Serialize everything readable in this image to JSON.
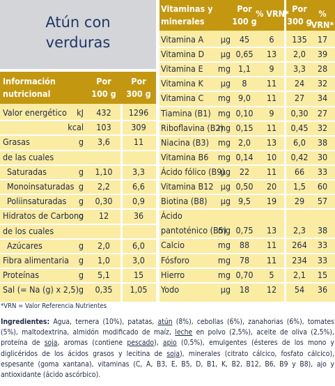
{
  "title": {
    "line1": "Atún con",
    "line2": "verduras"
  },
  "left": {
    "header": {
      "label_l1": "Información",
      "label_l2": "nutricional",
      "c1_l1": "Por",
      "c1_l2": "100 g",
      "c2_l1": "Por",
      "c2_l2": "300 g"
    },
    "rows": [
      {
        "label": "Valor energético",
        "unit": "kJ",
        "v1": "432",
        "v2": "1296"
      },
      {
        "label": "",
        "unit": "kcal",
        "v1": "103",
        "v2": "309"
      },
      {
        "label": "Grasas",
        "unit": "g",
        "v1": "3,6",
        "v2": "11"
      },
      {
        "label": "de las cuales",
        "unit": "",
        "v1": "",
        "v2": ""
      },
      {
        "label": "Saturadas",
        "unit": "g",
        "v1": "1,10",
        "v2": "3,3"
      },
      {
        "label": "Monoinsaturadas",
        "unit": "g",
        "v1": "2,2",
        "v2": "6,6"
      },
      {
        "label": "Poliinsaturadas",
        "unit": "g",
        "v1": "0,30",
        "v2": "0,9"
      },
      {
        "label": "Hidratos de Carbono",
        "unit": "g",
        "v1": "12",
        "v2": "36"
      },
      {
        "label": "de los cuales",
        "unit": "",
        "v1": "",
        "v2": ""
      },
      {
        "label": "Azúcares",
        "unit": "g",
        "v1": "2,0",
        "v2": "6,0"
      },
      {
        "label": "Fibra alimentaria",
        "unit": "g",
        "v1": "1,0",
        "v2": "3,0"
      },
      {
        "label": "Proteínas",
        "unit": "g",
        "v1": "5,1",
        "v2": "15"
      },
      {
        "label": "Sal (= Na (g) x 2,5)",
        "unit": "g",
        "v1": "0,35",
        "v2": "1,05"
      }
    ]
  },
  "right": {
    "header": {
      "label_l1": "Vitaminas y",
      "label_l2": "minerales",
      "c1_l1": "Por",
      "c1_l2": "100 g",
      "c2": "% VRN*",
      "c3_l1": "Por",
      "c3_l2": "300 g",
      "c4": "% VRN*"
    },
    "rows": [
      {
        "label": "Vitamina A",
        "unit": "µg",
        "v1": "45",
        "v2": "6",
        "v3": "135",
        "v4": "17"
      },
      {
        "label": "Vitamina D",
        "unit": "µg",
        "v1": "0,65",
        "v2": "13",
        "v3": "2,0",
        "v4": "39"
      },
      {
        "label": "Vitamina E",
        "unit": "mg",
        "v1": "1,1",
        "v2": "9",
        "v3": "3,3",
        "v4": "28"
      },
      {
        "label": "Vitamina K",
        "unit": "µg",
        "v1": "8",
        "v2": "11",
        "v3": "24",
        "v4": "32"
      },
      {
        "label": "Vitamina C",
        "unit": "mg",
        "v1": "9,0",
        "v2": "11",
        "v3": "27",
        "v4": "34"
      },
      {
        "label": "Tiamina (B1)",
        "unit": "mg",
        "v1": "0,10",
        "v2": "9",
        "v3": "0,30",
        "v4": "27"
      },
      {
        "label": "Riboflavina (B2)",
        "unit": "mg",
        "v1": "0,15",
        "v2": "11",
        "v3": "0,45",
        "v4": "32"
      },
      {
        "label": "Niacina (B3)",
        "unit": "mg",
        "v1": "2,0",
        "v2": "13",
        "v3": "6,0",
        "v4": "38"
      },
      {
        "label": "Vitamina B6",
        "unit": "mg",
        "v1": "0,14",
        "v2": "10",
        "v3": "0,42",
        "v4": "30"
      },
      {
        "label": "Ácido fólico (B9)",
        "unit": "µg",
        "v1": "22",
        "v2": "11",
        "v3": "66",
        "v4": "33"
      },
      {
        "label": "Vitamina B12",
        "unit": "µg",
        "v1": "0,50",
        "v2": "20",
        "v3": "1,5",
        "v4": "60"
      },
      {
        "label": "Biotina (B8)",
        "unit": "µg",
        "v1": "9,5",
        "v2": "19",
        "v3": "29",
        "v4": "57"
      },
      {
        "label": "Ácido",
        "unit": "",
        "v1": "",
        "v2": "",
        "v3": "",
        "v4": ""
      },
      {
        "label": "pantoténico (B5)",
        "unit": "mg",
        "v1": "0,75",
        "v2": "13",
        "v3": "2,3",
        "v4": "38"
      },
      {
        "label": "Calcio",
        "unit": "mg",
        "v1": "88",
        "v2": "11",
        "v3": "264",
        "v4": "33"
      },
      {
        "label": "Fósforo",
        "unit": "mg",
        "v1": "78",
        "v2": "11",
        "v3": "234",
        "v4": "33"
      },
      {
        "label": "Hierro",
        "unit": "mg",
        "v1": "0,70",
        "v2": "5",
        "v3": "2,1",
        "v4": "15"
      },
      {
        "label": "Yodo",
        "unit": "µg",
        "v1": "18",
        "v2": "12",
        "v3": "54",
        "v4": "36"
      }
    ]
  },
  "footnote": "*VRN = Valor Referencia Nutrientes",
  "ingredients": {
    "label": "Ingredientes:",
    "parts": [
      {
        "t": " Agua, ternera (10%), patatas, ",
        "u": false
      },
      {
        "t": "atún",
        "u": true
      },
      {
        "t": " (8%), cebollas (6%), zanahorias (6%), tomates (5%), maltodextrina, almidón modificado de maíz, ",
        "u": false
      },
      {
        "t": "leche",
        "u": true
      },
      {
        "t": " en polvo (2,5%), aceite de oliva (2,5%), proteína de ",
        "u": false
      },
      {
        "t": "soja",
        "u": true
      },
      {
        "t": ", aromas (contiene ",
        "u": false
      },
      {
        "t": "pescado",
        "u": true
      },
      {
        "t": "), ",
        "u": false
      },
      {
        "t": "apio",
        "u": true
      },
      {
        "t": " (0,5%), emulgentes (ésteres de los mono y diglicéridos de los ácidos grasos y lecitina de ",
        "u": false
      },
      {
        "t": "soja",
        "u": true
      },
      {
        "t": "), minerales (citrato cálcico, fosfato cálcico), espesante (goma xantana), vitaminas (C, A, B3, E, B5, D, B1, K, B2, B12, B6, B9 y B8), ajo y antioxidante (ácido ascórbico).",
        "u": false
      }
    ]
  },
  "colors": {
    "header": "#c39710",
    "body": "#fbeca4",
    "title_bg": "#d4d5d9",
    "text": "#1f2a44"
  }
}
